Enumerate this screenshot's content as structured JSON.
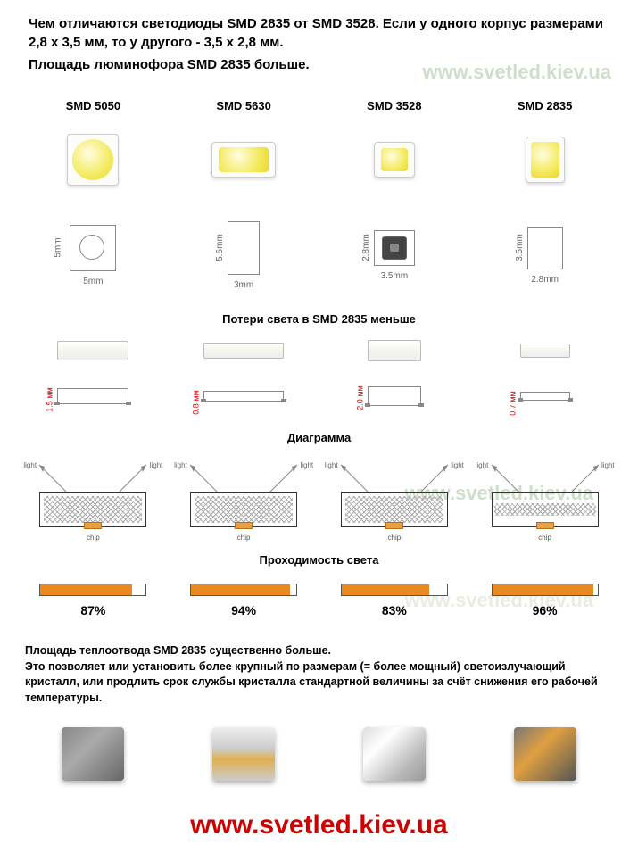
{
  "header": {
    "line1": "Чем отличаются светодиоды SMD 2835 от SMD 3528. Если у одного корпус размерами 2,8 x 3,5 мм, то у другого - 3,5 x 2,8 мм.",
    "line2": "Площадь люминофора SMD 2835 больше."
  },
  "watermarks": {
    "url": "www.svetled.kiev.ua",
    "bottom_url": "www.svetled.kiev.ua"
  },
  "columns": [
    {
      "label": "SMD 5050",
      "width_mm": "5mm",
      "height_mm": "5mm",
      "side_h": "1.5 мм",
      "led_w": 58,
      "led_h": 58,
      "phos_w": 46,
      "phos_h": 46,
      "phos_radius": 23,
      "dim_w": 52,
      "dim_h": 52,
      "side_w": 80,
      "side_hpx": 22,
      "prof_w": 80,
      "prof_h": 18
    },
    {
      "label": "SMD 5630",
      "width_mm": "3mm",
      "height_mm": "5.6mm",
      "side_h": "0.8 мм",
      "led_w": 72,
      "led_h": 40,
      "phos_w": 56,
      "phos_h": 28,
      "phos_radius": 4,
      "dim_w": 36,
      "dim_h": 60,
      "side_w": 90,
      "side_hpx": 18,
      "prof_w": 90,
      "prof_h": 12
    },
    {
      "label": "SMD 3528",
      "width_mm": "3.5mm",
      "height_mm": "2.8mm",
      "side_h": "2.0 мм",
      "led_w": 46,
      "led_h": 40,
      "phos_w": 30,
      "phos_h": 26,
      "phos_radius": 4,
      "dim_w": 46,
      "dim_h": 40,
      "side_w": 60,
      "side_hpx": 24,
      "prof_w": 60,
      "prof_h": 22
    },
    {
      "label": "SMD 2835",
      "width_mm": "2.8mm",
      "height_mm": "3.5mm",
      "side_h": "0.7 мм",
      "led_w": 44,
      "led_h": 52,
      "phos_w": 32,
      "phos_h": 40,
      "phos_radius": 4,
      "dim_w": 40,
      "dim_h": 48,
      "side_w": 56,
      "side_hpx": 16,
      "prof_w": 56,
      "prof_h": 10
    }
  ],
  "sections": {
    "light_loss": "Потери света в SMD 2835 меньше",
    "diagram": "Диаграмма",
    "light_pass": "Проходимость света"
  },
  "diagram_labels": {
    "light": "light",
    "chip": "chip"
  },
  "progress": [
    {
      "value": 87,
      "label": "87%"
    },
    {
      "value": 94,
      "label": "94%"
    },
    {
      "value": 83,
      "label": "83%"
    },
    {
      "value": 96,
      "label": "96%"
    }
  ],
  "body_text": "Площадь теплоотвода SMD 2835 существенно больше.\nЭто позволяет или установить более крупный по размерам (= более мощный) светоизлучающий кристалл, или продлить срок службы кристалла стандартной величины за счёт снижения его рабочей температуры.",
  "colors": {
    "phosphor": "#f4ea60",
    "progress_fill": "#e88a20",
    "watermark": "rgba(160,190,150,0.5)",
    "bottom_url": "#d00000",
    "dim_red": "#d00"
  },
  "bottom_chips": [
    {
      "bg": "linear-gradient(135deg,#888,#aaa 40%,#666)"
    },
    {
      "bg": "linear-gradient(to bottom,#eee,#ccc 40%,#e0b050 60%,#ccc)"
    },
    {
      "bg": "linear-gradient(135deg,#ddd,#fff 30%,#bbb 70%,#999)"
    },
    {
      "bg": "linear-gradient(135deg,#777,#e0a040 40%,#555)"
    }
  ]
}
